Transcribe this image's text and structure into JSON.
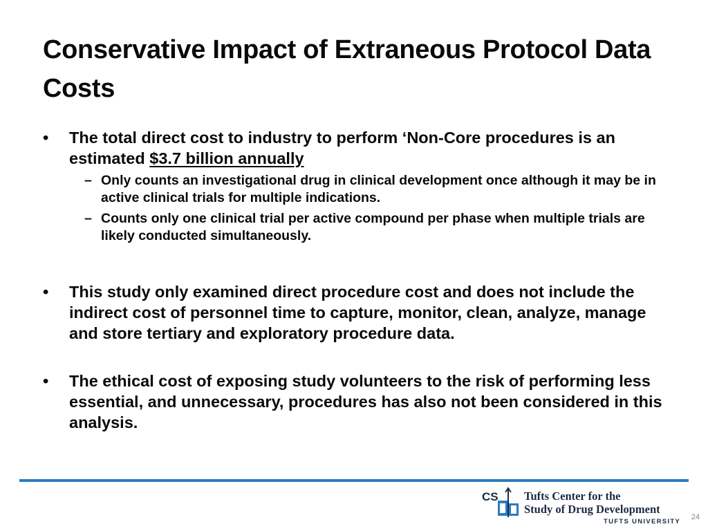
{
  "slide": {
    "title": "Conservative Impact of Extraneous Protocol Data Costs",
    "bullets": [
      {
        "text_before": "The total direct cost to industry to perform ‘Non-Core procedures is an estimated ",
        "emphasis": "$3.7 billion annually",
        "subbullets": [
          "Only counts an investigational drug in clinical development once although it may be in active clinical trials for multiple indications.",
          "Counts only one clinical trial per active compound per phase when multiple trials are likely conducted simultaneously."
        ]
      },
      {
        "text": "This study only examined direct procedure cost and does not include the indirect cost of personnel time to capture, monitor, clean, analyze, manage and store tertiary and exploratory procedure data."
      },
      {
        "text": "The ethical cost of exposing study volunteers to the risk of performing less essential, and unnecessary, procedures has also not been considered in this analysis."
      }
    ],
    "bullet_glyph": "•",
    "dash_glyph": "–",
    "page_number": "24"
  },
  "footer": {
    "logo_mark_text": "CSDD",
    "logo_line1": "Tufts Center for the",
    "logo_line2": "Study of Drug Development",
    "logo_line3": "TUFTS UNIVERSITY"
  },
  "colors": {
    "accent": "#2b7cbf",
    "text": "#0a0a0a",
    "logo_navy": "#1e2a44"
  }
}
